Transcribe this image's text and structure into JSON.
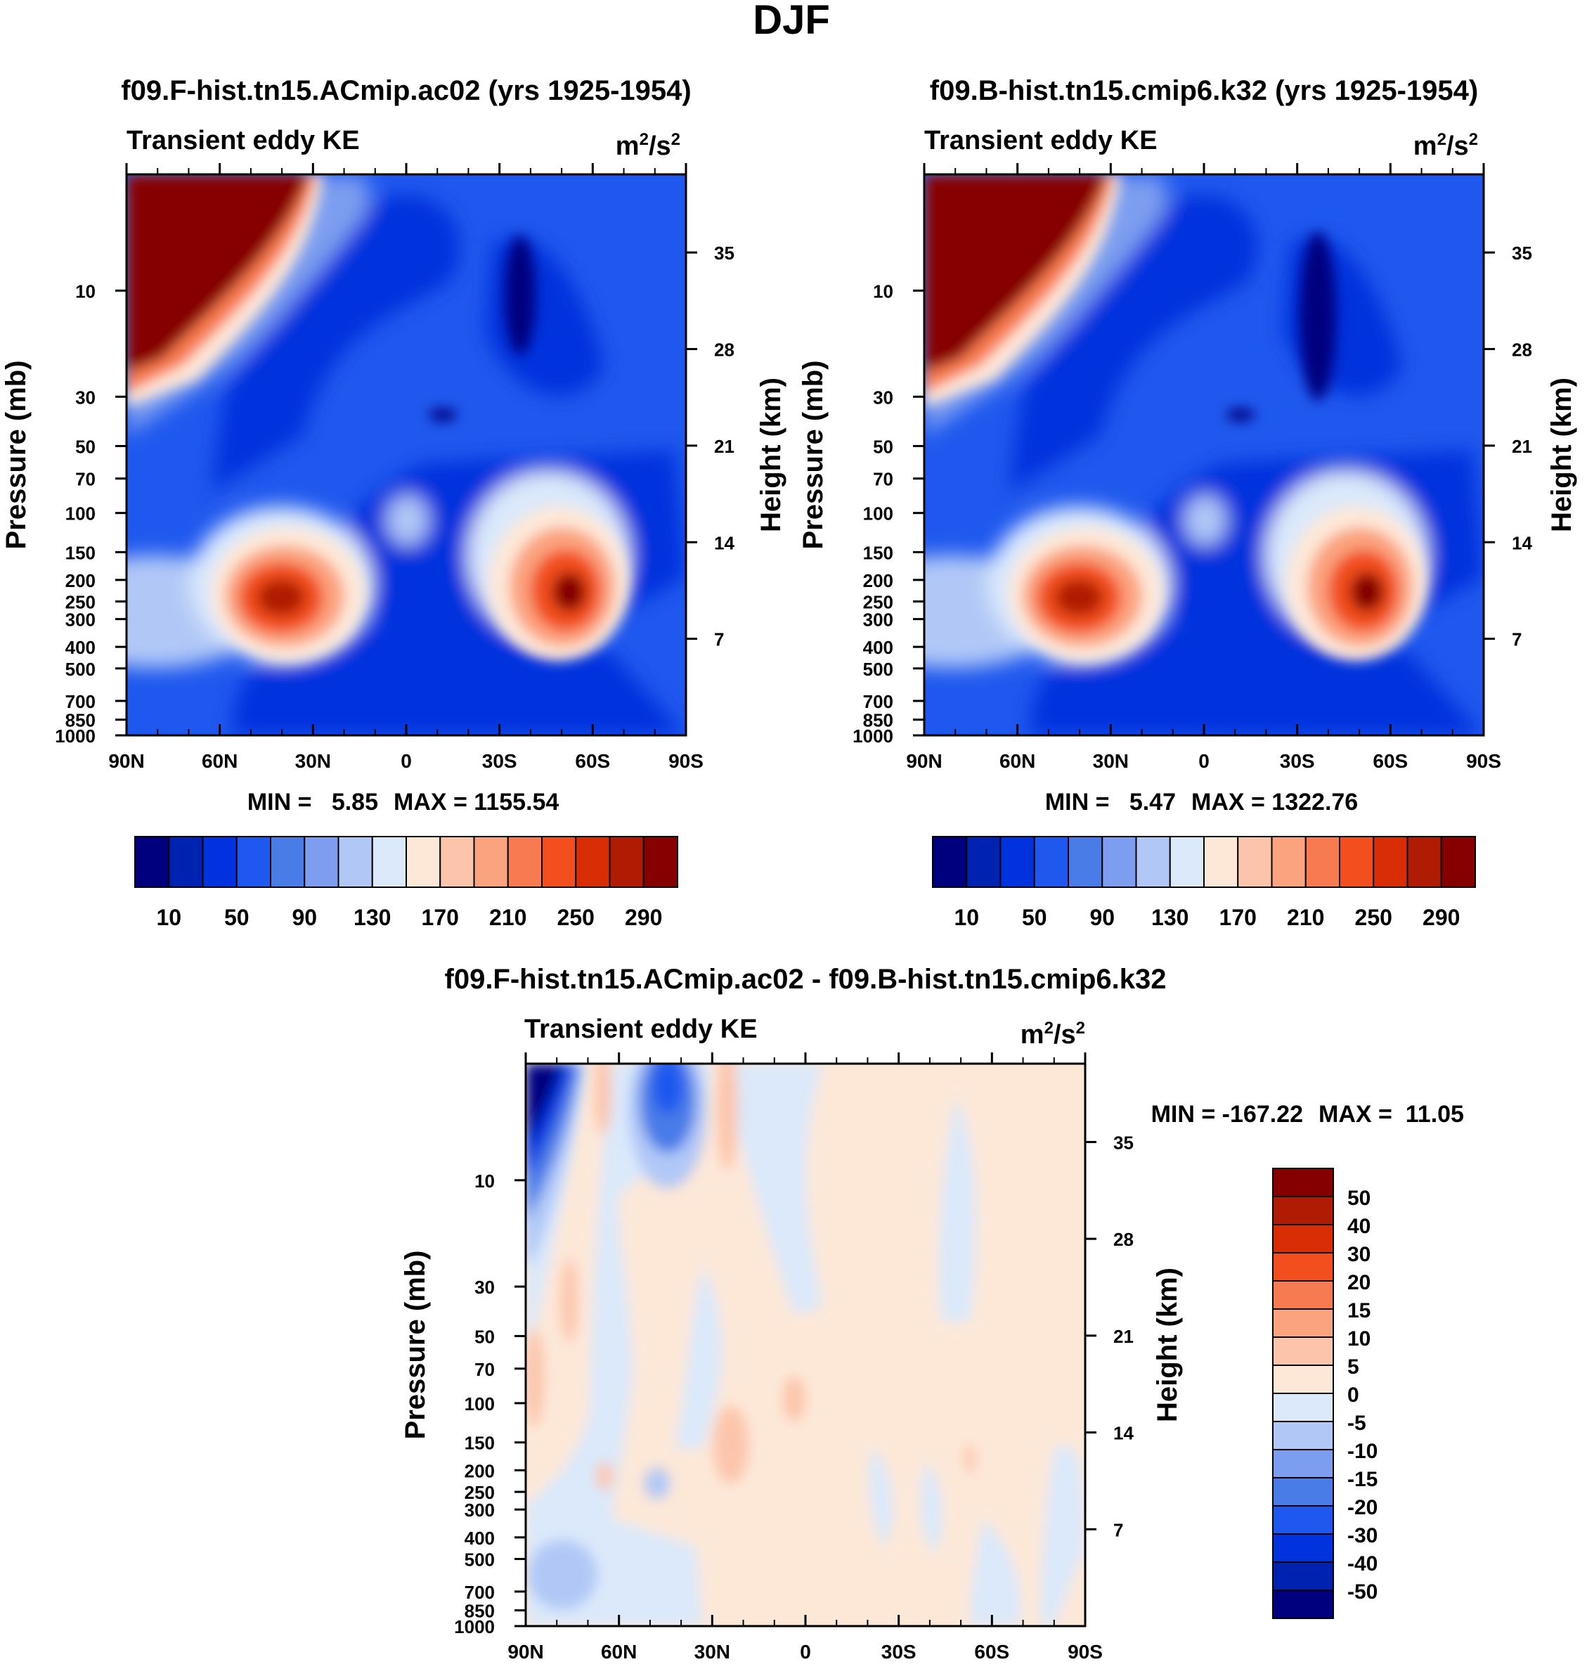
{
  "page_title": "DJF",
  "chart_data": [
    {
      "type": "contour",
      "title": "f09.F-hist.tn15.ACmip.ac02 (yrs 1925-1954)",
      "left_subtitle": "Transient eddy KE",
      "units_base": "m",
      "units_sep": "/s",
      "units_exp": "2",
      "ylabel": "Pressure (mb)",
      "ylabel_right": "Height (km)",
      "x_ticks": [
        "90N",
        "60N",
        "30N",
        "0",
        "30S",
        "60S",
        "90S"
      ],
      "y_ticks": [
        10,
        30,
        50,
        70,
        100,
        150,
        200,
        250,
        300,
        400,
        500,
        700,
        850,
        1000
      ],
      "height_ticks": [
        35,
        28,
        21,
        14,
        7
      ],
      "ylim": [
        3,
        1000
      ],
      "min_label": "MIN =   5.85",
      "max_label": "MAX = 1155.54",
      "colorbar": {
        "orientation": "horizontal",
        "colors": [
          "#00007f",
          "#0022b0",
          "#0033dd",
          "#1f58ee",
          "#4a7ce8",
          "#7d9ef0",
          "#b1c8f7",
          "#dbe9fb",
          "#fde8d8",
          "#fcc5ab",
          "#fba27e",
          "#f87a50",
          "#f24e1e",
          "#d92d05",
          "#b01b03",
          "#860000"
        ],
        "labels": [
          "10",
          "50",
          "90",
          "130",
          "170",
          "210",
          "250",
          "290"
        ]
      }
    },
    {
      "type": "contour",
      "title": "f09.B-hist.tn15.cmip6.k32 (yrs 1925-1954)",
      "left_subtitle": "Transient eddy KE",
      "units_base": "m",
      "units_sep": "/s",
      "units_exp": "2",
      "ylabel": "Pressure (mb)",
      "ylabel_right": "Height (km)",
      "x_ticks": [
        "90N",
        "60N",
        "30N",
        "0",
        "30S",
        "60S",
        "90S"
      ],
      "y_ticks": [
        10,
        30,
        50,
        70,
        100,
        150,
        200,
        250,
        300,
        400,
        500,
        700,
        850,
        1000
      ],
      "height_ticks": [
        35,
        28,
        21,
        14,
        7
      ],
      "ylim": [
        3,
        1000
      ],
      "min_label": "MIN =   5.47",
      "max_label": "MAX = 1322.76",
      "colorbar": {
        "orientation": "horizontal",
        "colors": [
          "#00007f",
          "#0022b0",
          "#0033dd",
          "#1f58ee",
          "#4a7ce8",
          "#7d9ef0",
          "#b1c8f7",
          "#dbe9fb",
          "#fde8d8",
          "#fcc5ab",
          "#fba27e",
          "#f87a50",
          "#f24e1e",
          "#d92d05",
          "#b01b03",
          "#860000"
        ],
        "labels": [
          "10",
          "50",
          "90",
          "130",
          "170",
          "210",
          "250",
          "290"
        ]
      }
    },
    {
      "type": "contour",
      "title": "f09.F-hist.tn15.ACmip.ac02 - f09.B-hist.tn15.cmip6.k32",
      "left_subtitle": "Transient eddy KE",
      "units_base": "m",
      "units_sep": "/s",
      "units_exp": "2",
      "ylabel": "Pressure (mb)",
      "ylabel_right": "Height (km)",
      "x_ticks": [
        "90N",
        "60N",
        "30N",
        "0",
        "30S",
        "60S",
        "90S"
      ],
      "y_ticks": [
        10,
        30,
        50,
        70,
        100,
        150,
        200,
        250,
        300,
        400,
        500,
        700,
        850,
        1000
      ],
      "height_ticks": [
        35,
        28,
        21,
        14,
        7
      ],
      "ylim": [
        3,
        1000
      ],
      "min_label": "MIN = -167.22",
      "max_label": "MAX =  11.05",
      "colorbar": {
        "orientation": "vertical",
        "colors": [
          "#860000",
          "#b01b03",
          "#d92d05",
          "#f24e1e",
          "#f87a50",
          "#fba27e",
          "#fcc5ab",
          "#fde8d8",
          "#dbe9fb",
          "#b1c8f7",
          "#7d9ef0",
          "#4a7ce8",
          "#1f58ee",
          "#0033dd",
          "#0022b0",
          "#00007f"
        ],
        "labels": [
          "50",
          "40",
          "30",
          "20",
          "15",
          "10",
          "5",
          "0",
          "-5",
          "-10",
          "-15",
          "-20",
          "-30",
          "-40",
          "-50"
        ]
      }
    }
  ]
}
